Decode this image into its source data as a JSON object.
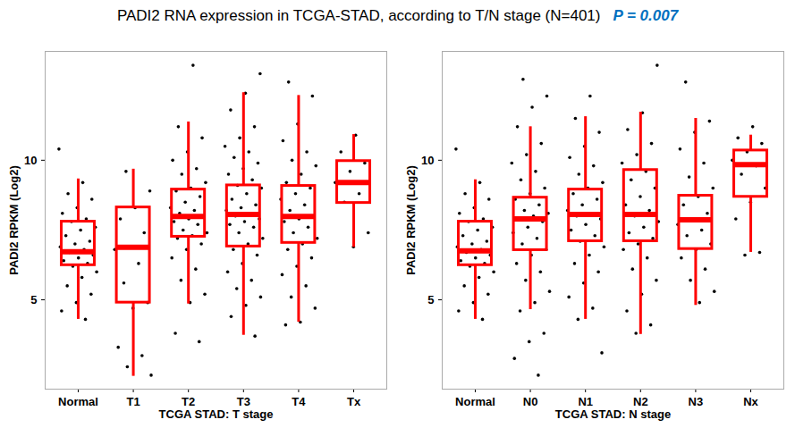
{
  "chart_data": [
    {
      "type": "box",
      "title": "PADI2 RNA expression in TCGA-STAD, according to T/N stage (N=401)",
      "annotation": "P = 0.007",
      "x_label": "TCGA STAD: T stage",
      "y_label": "PADI2 RPKM (Log2)",
      "color": "#ff0000",
      "ylim": [
        1.8,
        13.9
      ],
      "yticks": [
        5,
        10
      ],
      "categories": [
        "Normal",
        "T1",
        "T2",
        "T3",
        "T4",
        "Tx"
      ],
      "boxes": [
        {
          "whisker_low": 4.3,
          "q1": 6.24,
          "median": 6.72,
          "q3": 7.8,
          "whisker_high": 9.33
        },
        {
          "whisker_low": 2.26,
          "q1": 4.9,
          "median": 6.88,
          "q3": 8.31,
          "whisker_high": 9.68
        },
        {
          "whisker_low": 4.85,
          "q1": 7.26,
          "median": 7.99,
          "q3": 8.95,
          "whisker_high": 11.37
        },
        {
          "whisker_low": 3.73,
          "q1": 6.91,
          "median": 8.06,
          "q3": 9.1,
          "whisker_high": 12.42
        },
        {
          "whisker_low": 4.2,
          "q1": 7.04,
          "median": 7.99,
          "q3": 9.08,
          "whisker_high": 12.32
        },
        {
          "whisker_low": 6.88,
          "q1": 8.47,
          "median": 9.2,
          "q3": 9.97,
          "whisker_high": 10.92
        }
      ],
      "points": [
        [
          10.4,
          9.2,
          8.8,
          8.6,
          8.3,
          8.1,
          7.9,
          7.8,
          7.6,
          7.5,
          7.3,
          7.1,
          7.0,
          6.9,
          6.8,
          6.7,
          6.6,
          6.5,
          6.4,
          6.3,
          6.2,
          6.0,
          5.8,
          5.5,
          5.2,
          4.9,
          4.6,
          4.3
        ],
        [
          9.6,
          8.9,
          8.3,
          7.9,
          7.4,
          6.9,
          6.8,
          6.3,
          5.6,
          4.9,
          4.7,
          3.3,
          3.0,
          2.6,
          2.3
        ],
        [
          13.4,
          11.2,
          10.8,
          10.3,
          10.0,
          9.7,
          9.5,
          9.2,
          9.0,
          8.9,
          8.7,
          8.5,
          8.3,
          8.2,
          8.1,
          8.0,
          7.9,
          7.8,
          7.7,
          7.5,
          7.4,
          7.3,
          7.2,
          7.0,
          6.8,
          6.5,
          6.1,
          5.7,
          5.2,
          4.9,
          3.8,
          3.5
        ],
        [
          13.1,
          12.4,
          11.8,
          11.2,
          10.8,
          10.5,
          10.3,
          10.1,
          9.9,
          9.7,
          9.5,
          9.3,
          9.1,
          9.0,
          8.8,
          8.6,
          8.4,
          8.3,
          8.2,
          8.1,
          8.0,
          7.9,
          7.8,
          7.7,
          7.6,
          7.4,
          7.2,
          7.0,
          6.8,
          6.6,
          6.3,
          6.0,
          5.7,
          5.4,
          5.1,
          4.8,
          4.4,
          3.7
        ],
        [
          12.8,
          12.3,
          11.3,
          10.7,
          10.3,
          10.0,
          9.8,
          9.5,
          9.2,
          9.0,
          8.8,
          8.6,
          8.4,
          8.2,
          8.0,
          7.9,
          7.8,
          7.6,
          7.4,
          7.2,
          7.0,
          6.8,
          6.5,
          6.2,
          5.9,
          5.5,
          5.1,
          4.7,
          4.2,
          4.1
        ],
        [
          10.9,
          10.3,
          9.9,
          9.6,
          9.2,
          8.8,
          8.5,
          7.4,
          6.9
        ]
      ]
    },
    {
      "type": "box",
      "x_label": "TCGA STAD: N stage",
      "y_label": "PADI2 RPKM (Log2)",
      "color": "#ff0000",
      "ylim": [
        1.8,
        13.9
      ],
      "yticks": [
        5,
        10
      ],
      "categories": [
        "Normal",
        "N0",
        "N1",
        "N2",
        "N3",
        "Nx"
      ],
      "boxes": [
        {
          "whisker_low": 4.3,
          "q1": 6.24,
          "median": 6.75,
          "q3": 7.8,
          "whisker_high": 9.3
        },
        {
          "whisker_low": 4.65,
          "q1": 6.78,
          "median": 7.9,
          "q3": 8.66,
          "whisker_high": 11.2
        },
        {
          "whisker_low": 4.3,
          "q1": 7.1,
          "median": 8.06,
          "q3": 8.95,
          "whisker_high": 11.56
        },
        {
          "whisker_low": 3.76,
          "q1": 7.1,
          "median": 8.06,
          "q3": 9.65,
          "whisker_high": 11.72
        },
        {
          "whisker_low": 4.8,
          "q1": 6.82,
          "median": 7.87,
          "q3": 8.73,
          "whisker_high": 11.5
        },
        {
          "whisker_low": 6.7,
          "q1": 8.69,
          "median": 9.84,
          "q3": 10.35,
          "whisker_high": 10.9
        }
      ],
      "points": [
        [
          10.4,
          9.2,
          8.8,
          8.6,
          8.3,
          8.1,
          7.9,
          7.8,
          7.6,
          7.5,
          7.3,
          7.1,
          7.0,
          6.9,
          6.8,
          6.7,
          6.6,
          6.5,
          6.4,
          6.3,
          6.2,
          6.0,
          5.8,
          5.5,
          5.2,
          4.9,
          4.6,
          4.3
        ],
        [
          12.9,
          12.3,
          11.9,
          11.2,
          10.6,
          10.2,
          9.9,
          9.6,
          9.3,
          9.0,
          8.8,
          8.6,
          8.4,
          8.2,
          8.1,
          8.0,
          7.9,
          7.8,
          7.6,
          7.4,
          7.2,
          7.0,
          6.8,
          6.6,
          6.3,
          6.0,
          5.7,
          5.3,
          4.9,
          4.6,
          3.8,
          3.5,
          2.9,
          2.3
        ],
        [
          12.3,
          11.5,
          11.0,
          10.5,
          10.1,
          9.8,
          9.5,
          9.2,
          9.0,
          8.8,
          8.6,
          8.4,
          8.2,
          8.1,
          8.0,
          7.9,
          7.7,
          7.5,
          7.3,
          7.1,
          6.9,
          6.6,
          6.3,
          6.0,
          5.6,
          5.1,
          4.7,
          4.3,
          3.1
        ],
        [
          13.4,
          11.7,
          11.1,
          10.6,
          10.2,
          9.9,
          9.6,
          9.3,
          9.0,
          8.7,
          8.4,
          8.2,
          8.0,
          7.8,
          7.6,
          7.4,
          7.2,
          7.0,
          6.8,
          6.5,
          6.1,
          5.7,
          5.2,
          4.6,
          4.1,
          3.8
        ],
        [
          12.8,
          11.4,
          11.0,
          10.4,
          9.9,
          9.4,
          9.0,
          8.7,
          8.4,
          8.1,
          7.9,
          7.7,
          7.5,
          7.3,
          7.0,
          6.8,
          6.5,
          6.1,
          5.7,
          5.3,
          4.9
        ],
        [
          11.2,
          10.8,
          10.6,
          10.3,
          10.0,
          9.8,
          9.5,
          9.0,
          8.5,
          7.9,
          6.7,
          6.6
        ]
      ]
    }
  ]
}
